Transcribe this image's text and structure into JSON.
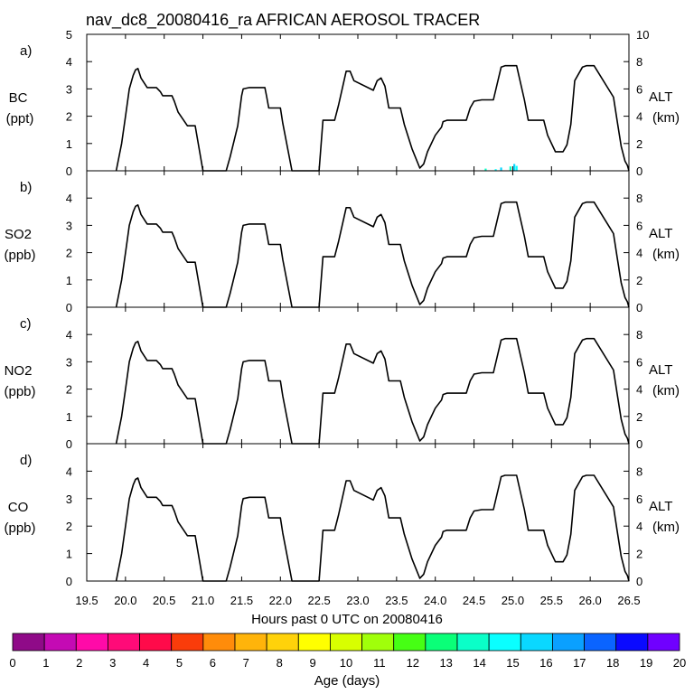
{
  "chart_data": {
    "type": "line",
    "title": "nav_dc8_20080416_ra AFRICAN AEROSOL TRACER",
    "xlabel": "Hours past 0 UTC on 20080416",
    "xlim": [
      19.5,
      26.5
    ],
    "x_ticks": [
      "19.5",
      "20.0",
      "20.5",
      "21.0",
      "21.5",
      "22.0",
      "22.5",
      "23.0",
      "23.5",
      "24.0",
      "24.5",
      "25.0",
      "25.5",
      "26.0",
      "26.5"
    ],
    "altitude_series": {
      "name": "ALT (km)",
      "x": [
        19.88,
        19.95,
        20.0,
        20.05,
        20.1,
        20.13,
        20.16,
        20.2,
        20.28,
        20.4,
        20.45,
        20.48,
        20.5,
        20.6,
        20.63,
        20.68,
        20.8,
        20.85,
        20.9,
        21.0,
        21.05,
        21.3,
        21.35,
        21.45,
        21.5,
        21.52,
        21.6,
        21.8,
        21.82,
        21.85,
        21.95,
        22.0,
        22.03,
        22.15,
        22.2,
        22.35,
        22.45,
        22.5,
        22.55,
        22.6,
        22.7,
        22.75,
        22.85,
        22.9,
        22.95,
        23.2,
        23.25,
        23.3,
        23.35,
        23.4,
        23.55,
        23.6,
        23.7,
        23.8,
        23.85,
        23.9,
        24.0,
        24.08,
        24.1,
        24.15,
        24.4,
        24.45,
        24.5,
        24.6,
        24.7,
        24.75,
        24.85,
        24.9,
        25.05,
        25.15,
        25.2,
        25.4,
        25.45,
        25.55,
        25.6,
        25.65,
        25.7,
        25.75,
        25.8,
        25.9,
        25.95,
        26.05,
        26.3,
        26.35,
        26.4,
        26.45,
        26.48,
        26.5
      ],
      "y": [
        0,
        2,
        4,
        6,
        7,
        7.4,
        7.5,
        6.8,
        6.1,
        6.1,
        5.8,
        5.5,
        5.5,
        5.5,
        5.1,
        4.3,
        3.3,
        3.3,
        3.3,
        0,
        0,
        0,
        1,
        3.3,
        5.5,
        6,
        6.1,
        6.1,
        5.5,
        4.6,
        4.6,
        4.6,
        3.5,
        0,
        0,
        0,
        0,
        0,
        3.7,
        3.7,
        3.7,
        4.8,
        7.3,
        7.3,
        6.6,
        5.9,
        6.6,
        6.8,
        6.2,
        4.6,
        4.6,
        3.4,
        1.6,
        0.2,
        0.5,
        1.4,
        2.6,
        3.2,
        3.6,
        3.7,
        3.7,
        4.6,
        5.1,
        5.2,
        5.2,
        5.2,
        7.6,
        7.7,
        7.7,
        5.2,
        3.7,
        3.7,
        2.6,
        1.4,
        1.4,
        1.4,
        1.9,
        3.4,
        6.6,
        7.6,
        7.7,
        7.7,
        5.4,
        3.6,
        1.8,
        0.7,
        0.4,
        0
      ],
      "ylim": [
        0,
        10
      ]
    },
    "panels": [
      {
        "letter": "a)",
        "species": "BC",
        "unit": "(ppt)",
        "y_top_label": "5",
        "left_ticks": [
          "0",
          "1",
          "2",
          "3",
          "4",
          "5"
        ],
        "ylim": [
          0,
          5
        ],
        "right_ticks": [
          "0",
          "2",
          "4",
          "6",
          "8",
          "10"
        ],
        "right_label": "ALT",
        "right_unit": "(km)",
        "age_points": [
          {
            "x": 24.65,
            "value": 0.08,
            "age": 14
          },
          {
            "x": 24.78,
            "value": 0.06,
            "age": 15
          },
          {
            "x": 24.85,
            "value": 0.12,
            "age": 16
          },
          {
            "x": 24.97,
            "value": 0.16,
            "age": 14
          },
          {
            "x": 25.02,
            "value": 0.25,
            "age": 16
          },
          {
            "x": 25.05,
            "value": 0.18,
            "age": 15
          }
        ]
      },
      {
        "letter": "b)",
        "species": "SO2",
        "unit": "(ppb)",
        "left_ticks": [
          "0",
          "1",
          "2",
          "3",
          "4"
        ],
        "ylim": [
          0,
          5
        ],
        "right_ticks": [
          "0",
          "2",
          "4",
          "6",
          "8"
        ],
        "right_label": "ALT",
        "right_unit": "(km)",
        "age_points": []
      },
      {
        "letter": "c)",
        "species": "NO2",
        "unit": "(ppb)",
        "left_ticks": [
          "0",
          "1",
          "2",
          "3",
          "4"
        ],
        "ylim": [
          0,
          5
        ],
        "right_ticks": [
          "0",
          "2",
          "4",
          "6",
          "8"
        ],
        "right_label": "ALT",
        "right_unit": "(km)",
        "age_points": []
      },
      {
        "letter": "d)",
        "species": "CO",
        "unit": "(ppb)",
        "left_ticks": [
          "0",
          "1",
          "2",
          "3",
          "4"
        ],
        "ylim": [
          0,
          5
        ],
        "right_ticks": [
          "0",
          "2",
          "4",
          "6",
          "8"
        ],
        "right_label": "ALT",
        "right_unit": "(km)",
        "age_points": []
      }
    ],
    "colorbar": {
      "label": "Age (days)",
      "ticks": [
        "0",
        "1",
        "2",
        "3",
        "4",
        "5",
        "6",
        "7",
        "8",
        "9",
        "10",
        "11",
        "12",
        "13",
        "14",
        "15",
        "16",
        "17",
        "18",
        "19",
        "20"
      ],
      "colors": [
        "#8f0a88",
        "#c40ab4",
        "#ff0aa8",
        "#ff0a78",
        "#ff0a4a",
        "#fa3c0a",
        "#ff8c0a",
        "#ffb40a",
        "#ffd20a",
        "#ffff00",
        "#d8ff00",
        "#a0ff0a",
        "#46ff14",
        "#0aff78",
        "#0affc8",
        "#0affff",
        "#0ad8ff",
        "#0aa0ff",
        "#0a64ff",
        "#0a0aff",
        "#7000ff"
      ]
    }
  }
}
